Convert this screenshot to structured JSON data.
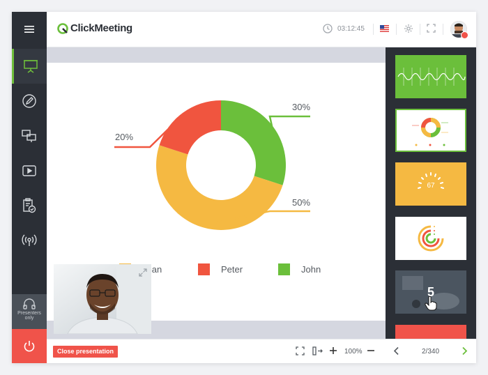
{
  "app": {
    "logo_text": "ClickMeeting",
    "timer": "03:12:45"
  },
  "rail": {
    "items": [
      {
        "name": "presentation-icon",
        "active": true
      },
      {
        "name": "whiteboard-icon",
        "active": false
      },
      {
        "name": "screen-share-icon",
        "active": false
      },
      {
        "name": "video-play-icon",
        "active": false
      },
      {
        "name": "clipboard-check-icon",
        "active": false
      },
      {
        "name": "broadcast-icon",
        "active": false
      }
    ],
    "presenters_label_1": "Presenters",
    "presenters_label_2": "only"
  },
  "chart_data": {
    "type": "pie",
    "donut": true,
    "categories": [
      "Jean",
      "Peter",
      "John"
    ],
    "values": [
      50,
      20,
      30
    ],
    "labels": [
      "50%",
      "20%",
      "30%"
    ],
    "colors": [
      "#f5b942",
      "#f0553f",
      "#6bbf3b"
    ],
    "legend_position": "bottom"
  },
  "legend": [
    {
      "label": "Jean",
      "color": "#f5b942"
    },
    {
      "label": "Peter",
      "color": "#f0553f"
    },
    {
      "label": "John",
      "color": "#6bbf3b"
    }
  ],
  "slides": {
    "thumb_colors": [
      "#6bbf3b",
      "#ffffff",
      "#f5b942",
      "#ffffff",
      "#3a3f46",
      "#f0534a"
    ],
    "hover_number": "5",
    "thumb3_text": "67"
  },
  "bottom": {
    "close_label": "Close presentation",
    "zoom": "100%",
    "page_indicator": "2/340"
  }
}
